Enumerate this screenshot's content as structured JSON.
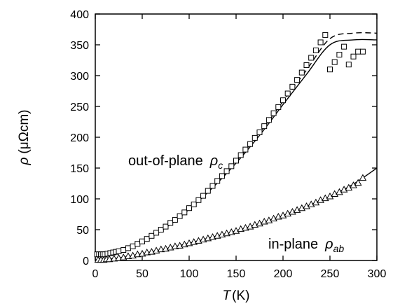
{
  "chart_data": {
    "type": "scatter",
    "xlabel": {
      "symbol": "T",
      "unit": "(K)"
    },
    "ylabel": {
      "symbol": "ρ",
      "unit": "(μΩcm)"
    },
    "xlim": [
      0,
      300
    ],
    "ylim": [
      0,
      400
    ],
    "xticks": [
      "0",
      "50",
      "100",
      "150",
      "200",
      "250",
      "300"
    ],
    "yticks": [
      "0",
      "50",
      "100",
      "150",
      "200",
      "250",
      "300",
      "350",
      "400"
    ],
    "grid": false,
    "legend": "none",
    "annotations": [
      {
        "text": "out-of-plane",
        "symbol": "ρ",
        "subscript": "c"
      },
      {
        "text": "in-plane",
        "symbol": "ρ",
        "subscript": "ab"
      }
    ],
    "series": [
      {
        "marker": "square",
        "x": [
          2,
          4,
          6,
          8,
          10,
          13,
          16,
          19,
          22,
          25,
          30,
          35,
          40,
          45,
          50,
          55,
          60,
          65,
          70,
          75,
          80,
          85,
          90,
          95,
          100,
          105,
          110,
          115,
          120,
          125,
          130,
          135,
          140,
          145,
          150,
          155,
          160,
          165,
          170,
          175,
          180,
          185,
          190,
          195,
          200,
          205,
          210,
          215,
          220,
          225,
          230,
          235,
          240,
          245,
          250,
          255,
          260,
          265,
          270,
          275,
          280,
          285
        ],
        "y": [
          10,
          10,
          10,
          10,
          10,
          11,
          12,
          13,
          14,
          15,
          17,
          20,
          23,
          27,
          31,
          35,
          40,
          45,
          50,
          55,
          61,
          66,
          72,
          78,
          85,
          91,
          98,
          105,
          113,
          121,
          129,
          137,
          145,
          153,
          162,
          171,
          180,
          189,
          199,
          208,
          218,
          228,
          239,
          249,
          260,
          271,
          282,
          293,
          305,
          317,
          329,
          341,
          354,
          366,
          310,
          322,
          334,
          347,
          318,
          331,
          339,
          339
        ]
      },
      {
        "marker": "triangle",
        "x": [
          3,
          6,
          9,
          12,
          15,
          20,
          25,
          30,
          35,
          40,
          45,
          50,
          55,
          60,
          65,
          70,
          75,
          80,
          85,
          90,
          95,
          100,
          105,
          110,
          115,
          120,
          125,
          130,
          135,
          140,
          145,
          150,
          155,
          160,
          165,
          170,
          175,
          180,
          185,
          190,
          195,
          200,
          205,
          210,
          215,
          220,
          225,
          230,
          235,
          240,
          245,
          250,
          255,
          260,
          265,
          270,
          275,
          280,
          285
        ],
        "y": [
          1,
          1,
          1,
          2,
          2,
          3,
          4,
          5,
          7,
          8,
          10,
          11,
          13,
          14,
          16,
          18,
          19,
          21,
          23,
          24,
          26,
          28,
          30,
          32,
          34,
          36,
          38,
          40,
          42,
          44,
          46,
          48,
          51,
          53,
          55,
          58,
          60,
          63,
          65,
          68,
          71,
          73,
          76,
          79,
          82,
          85,
          88,
          91,
          94,
          98,
          101,
          104,
          108,
          111,
          115,
          118,
          122,
          126,
          134
        ]
      }
    ],
    "fits": [
      {
        "style": "solid",
        "x": [
          0,
          25,
          50,
          75,
          100,
          125,
          150,
          175,
          200,
          225,
          250,
          275,
          300
        ],
        "y": [
          9,
          14,
          30,
          53,
          83,
          118,
          158,
          203,
          253,
          302,
          350,
          358,
          358
        ]
      },
      {
        "style": "dashed",
        "x": [
          0,
          25,
          50,
          75,
          100,
          125,
          150,
          175,
          200,
          225,
          250,
          275,
          300
        ],
        "y": [
          10,
          15,
          31,
          55,
          85,
          120,
          161,
          207,
          258,
          309,
          360,
          369,
          369
        ]
      },
      {
        "style": "solid",
        "x": [
          0,
          25,
          50,
          75,
          100,
          125,
          150,
          175,
          200,
          225,
          250,
          275,
          300
        ],
        "y": [
          1,
          4,
          11,
          19,
          28,
          38,
          48,
          60,
          73,
          88,
          104,
          124,
          150
        ]
      }
    ]
  }
}
